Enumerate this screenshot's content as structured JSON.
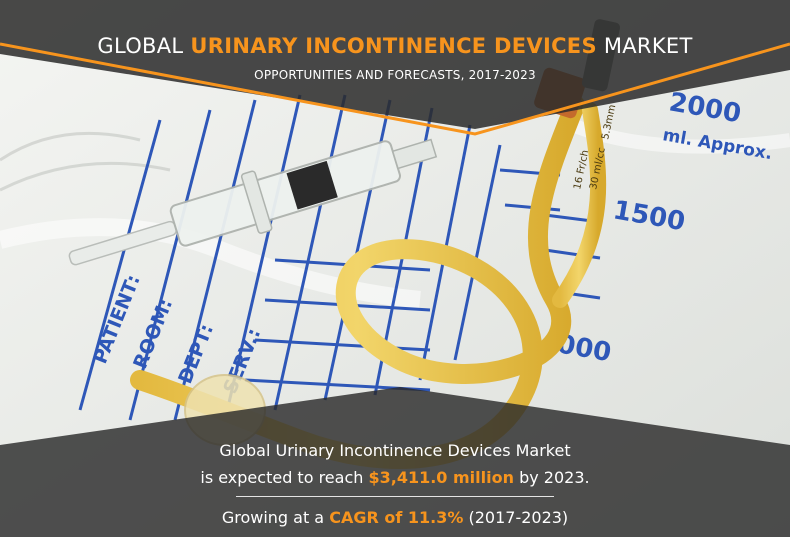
{
  "colors": {
    "accent": "#f7941d",
    "overlay": "#2b2b2b"
  },
  "header": {
    "title_prefix": "GLOBAL ",
    "title_highlight": "URINARY INCONTINENCE DEVICES",
    "title_suffix": " MARKET",
    "subtitle": "OPPORTUNITIES AND FORECASTS, 2017-2023"
  },
  "bag_markings": {
    "volume_2000": "2000",
    "volume_unit": "ml. Approx.",
    "volume_1500": "1500",
    "volume_1000": "000",
    "patient_label": "PATIENT:",
    "room_label": "ROOM:",
    "dept_label": "DEPT:",
    "serv_label": "SERV.:"
  },
  "catheter_markings": {
    "size": "16 Fr/ch",
    "volume": "30 ml/cc",
    "diameter": "5.3mm"
  },
  "footer": {
    "line1": "Global Urinary Incontinence Devices Market",
    "line2_prefix": "is expected to reach ",
    "line2_value": "$3,411.0 million",
    "line2_suffix": " by 2023.",
    "line3_prefix": "Growing at a ",
    "line3_value": "CAGR of 11.3%",
    "line3_suffix": " (2017-2023)"
  }
}
